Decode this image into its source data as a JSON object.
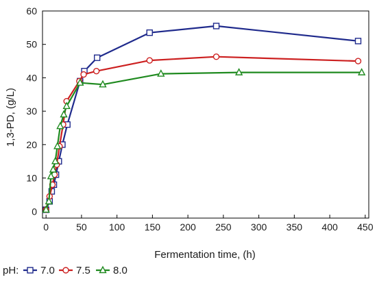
{
  "chart_data": {
    "type": "line",
    "xlabel": "Fermentation time, (h)",
    "ylabel": "1,3-PD, (g/L)",
    "xlim": [
      -5,
      455
    ],
    "ylim": [
      -2,
      60
    ],
    "xticks": [
      "0",
      "50",
      "100",
      "150",
      "200",
      "250",
      "300",
      "350",
      "400",
      "450"
    ],
    "yticks": [
      "0",
      "10",
      "20",
      "30",
      "40",
      "50",
      "60"
    ],
    "grid": false,
    "legend": {
      "placement": "bottom-left",
      "prefix": "pH:",
      "entries": [
        "7.0",
        "7.5",
        "8.0"
      ]
    },
    "series": [
      {
        "name": "7.0",
        "color": "#1f2a8c",
        "marker": "square",
        "x": [
          0,
          5,
          8,
          11,
          14,
          18,
          23,
          30,
          48,
          54,
          72,
          146,
          240,
          440
        ],
        "y": [
          0.5,
          3.0,
          6.0,
          8.0,
          11.0,
          15.0,
          20.0,
          26.0,
          39.0,
          42.0,
          46.0,
          53.5,
          55.5,
          51.0
        ]
      },
      {
        "name": "7.5",
        "color": "#cc1f1f",
        "marker": "circle",
        "x": [
          0,
          5,
          9,
          12,
          15,
          19,
          24,
          29,
          47,
          53,
          71,
          146,
          240,
          440
        ],
        "y": [
          0.5,
          4.5,
          8.0,
          11.0,
          14.0,
          19.5,
          26.0,
          33.0,
          39.0,
          41.0,
          42.0,
          45.2,
          46.3,
          45.0
        ]
      },
      {
        "name": "8.0",
        "color": "#1f8a1f",
        "marker": "triangle",
        "x": [
          0,
          4,
          7,
          10,
          13,
          16,
          20,
          25,
          29,
          48,
          80,
          162,
          272,
          445
        ],
        "y": [
          0.5,
          3.0,
          10.5,
          12.5,
          15.0,
          19.5,
          25.5,
          29.0,
          31.5,
          38.5,
          38.0,
          41.2,
          41.6,
          41.6
        ]
      }
    ]
  }
}
